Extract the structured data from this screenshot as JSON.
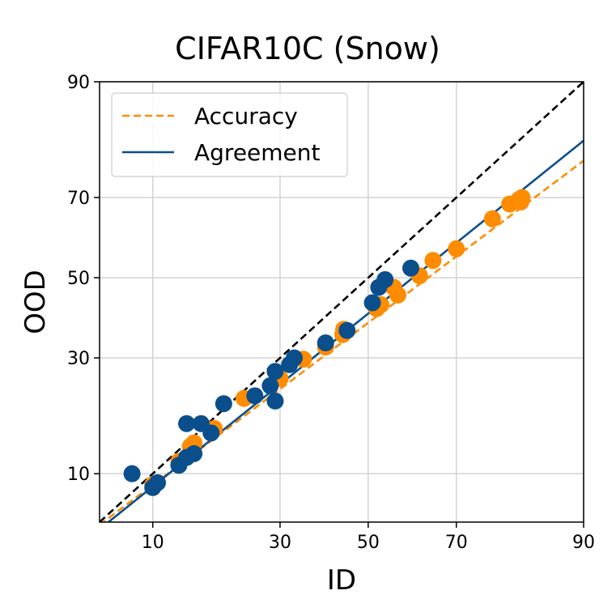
{
  "chart_data": {
    "type": "scatter",
    "title": "CIFAR10C (Snow)",
    "xlabel": "ID",
    "ylabel": "OOD",
    "scale": "probit",
    "xlim": [
      5.5,
      90
    ],
    "ylim": [
      5.5,
      90
    ],
    "xticks": [
      10,
      30,
      50,
      70,
      90
    ],
    "yticks": [
      10,
      30,
      50,
      70,
      90
    ],
    "grid": true,
    "legend_position": "upper-left",
    "colors": {
      "accuracy": "#ff8c00",
      "agreement": "#0a4f8c",
      "diagonal": "#000000",
      "grid": "#d3d3d3"
    },
    "diagonal": {
      "style": "dashed",
      "x": [
        5.5,
        90
      ],
      "y": [
        5.5,
        90
      ]
    },
    "series": [
      {
        "name": "Accuracy",
        "legend_label": "Accuracy",
        "line_style": "dashed",
        "fit_line": {
          "x": [
            5.5,
            90
          ],
          "y": [
            5.3,
            77.8
          ]
        },
        "points": [
          [
            10.0,
            8.8
          ],
          [
            13.0,
            11.5
          ],
          [
            14.5,
            13.5
          ],
          [
            15.0,
            14.0
          ],
          [
            18.0,
            16.2
          ],
          [
            23.0,
            21.5
          ],
          [
            30.0,
            25.5
          ],
          [
            35.0,
            29.7
          ],
          [
            40.0,
            32.5
          ],
          [
            44.0,
            35.5
          ],
          [
            44.2,
            36.8
          ],
          [
            52.0,
            42.0
          ],
          [
            53.0,
            43.0
          ],
          [
            56.0,
            47.5
          ],
          [
            57.0,
            45.5
          ],
          [
            62.0,
            50.5
          ],
          [
            65.0,
            54.5
          ],
          [
            70.0,
            57.5
          ],
          [
            77.0,
            65.0
          ],
          [
            80.0,
            68.5
          ],
          [
            81.5,
            69.5
          ],
          [
            81.8,
            69.0
          ],
          [
            82.0,
            70.0
          ]
        ]
      },
      {
        "name": "Agreement",
        "legend_label": "Agreement",
        "line_style": "solid",
        "fit_line": {
          "x": [
            5.5,
            90
          ],
          "y": [
            5.0,
            81.5
          ]
        },
        "points": [
          [
            8.0,
            10.0
          ],
          [
            10.0,
            8.5
          ],
          [
            10.5,
            9.0
          ],
          [
            13.0,
            11.0
          ],
          [
            14.0,
            12.0
          ],
          [
            15.0,
            12.5
          ],
          [
            14.0,
            17.0
          ],
          [
            16.0,
            17.0
          ],
          [
            17.5,
            15.5
          ],
          [
            19.5,
            20.5
          ],
          [
            25.0,
            22.0
          ],
          [
            28.0,
            24.0
          ],
          [
            29.0,
            27.0
          ],
          [
            29.0,
            21.0
          ],
          [
            32.0,
            28.5
          ],
          [
            33.0,
            30.0
          ],
          [
            40.0,
            33.5
          ],
          [
            45.0,
            36.5
          ],
          [
            51.0,
            43.5
          ],
          [
            52.5,
            47.5
          ],
          [
            54.0,
            49.5
          ],
          [
            60.0,
            52.5
          ]
        ]
      }
    ]
  }
}
